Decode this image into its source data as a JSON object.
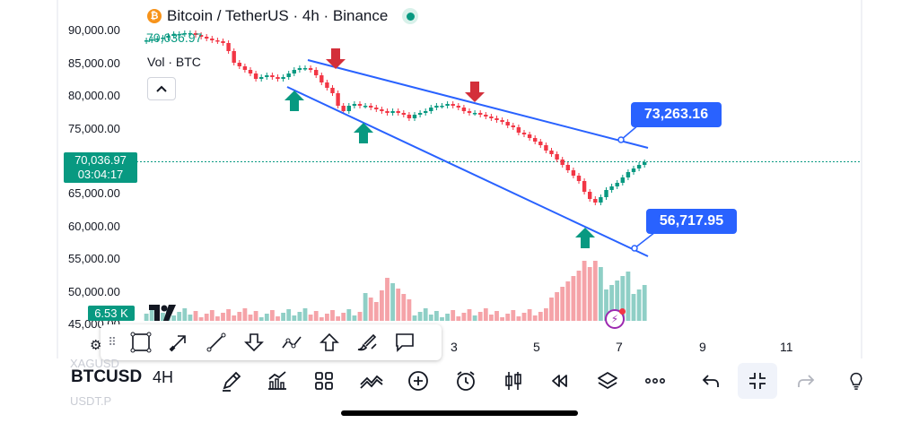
{
  "header": {
    "title": "Bitcoin / TetherUS · 4h · Binance",
    "coin_icon": "bitcoin-logo-icon",
    "last_price": "70,036.97",
    "volume_label": "Vol · BTC"
  },
  "price_axis": {
    "labels": [
      "90,000.00",
      "85,000.00",
      "80,000.00",
      "75,000.00",
      "65,000.00",
      "60,000.00",
      "55,000.00",
      "50,000.00",
      "45,000.00"
    ],
    "current_price": "70,036.97",
    "countdown": "03:04:17",
    "volume_value": "6.53 K"
  },
  "time_axis": {
    "labels": [
      "3",
      "5",
      "7",
      "9",
      "11"
    ]
  },
  "annotations": {
    "upper_trend_value": "73,263.16",
    "lower_trend_value": "56,717.95"
  },
  "colors": {
    "up": "#089981",
    "down": "#f23645",
    "trendline": "#2962ff",
    "volume_up": "#8fcfc6",
    "volume_down": "#f5a3a8"
  },
  "drawing_toolbar": {
    "tools": [
      "rectangle-icon",
      "arrow-icon",
      "trend-line-icon",
      "arrow-down-icon",
      "path-icon",
      "arrow-up-icon",
      "brush-icon",
      "callout-icon"
    ]
  },
  "bottom_toolbar": {
    "symbol": "BTCUSD",
    "interval": "4H",
    "buttons": [
      "draw-icon",
      "indicators-icon",
      "templates-icon",
      "compare-icon",
      "add-icon",
      "alert-icon",
      "chart-type-icon",
      "replay-icon",
      "layers-icon",
      "more-icon",
      "undo-icon",
      "exit-fullscreen-icon",
      "redo-icon",
      "lightbulb-icon"
    ]
  },
  "faded_text": {
    "line1": "XAGUSD",
    "line2": "USDT.P"
  }
}
